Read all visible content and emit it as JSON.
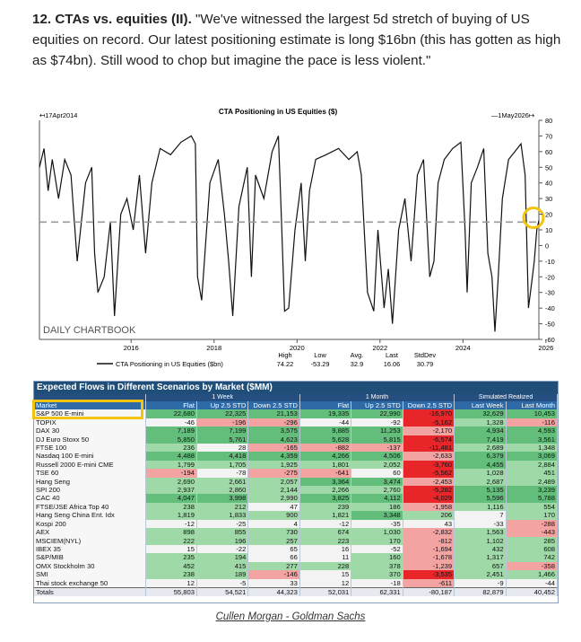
{
  "heading": {
    "number": "12. CTAs vs. equities (II).",
    "quote": " \"We've witnessed the largest 5d stretch of buying of US equities on record. Our latest positioning estimate is long $16bn (this has gotten as high as $74bn). Still wood to chop but imagine the pace is less violent.\""
  },
  "chart_data": [
    {
      "type": "line",
      "title": "CTA Positioning in US Equities ($)",
      "start_label": "17Apr2014",
      "end_label": "1May2026",
      "watermark": "DAILY CHARTBOOK",
      "x_ticks": [
        "2016",
        "2018",
        "2020",
        "2022",
        "2024",
        "2026"
      ],
      "y_ticks": [
        80,
        70,
        60,
        50,
        40,
        30,
        20,
        10,
        0,
        -10,
        -20,
        -30,
        -40,
        -50,
        -60
      ],
      "ylim": [
        -60,
        80
      ],
      "xlim": [
        2014.29,
        2026.33
      ],
      "mean_line": 15,
      "series": [
        {
          "name": "CTA Positioning in US Equities ($bn)",
          "x": [
            2014.29,
            2014.4,
            2014.5,
            2014.6,
            2014.75,
            2014.9,
            2015.05,
            2015.2,
            2015.4,
            2015.55,
            2015.62,
            2015.7,
            2015.85,
            2016.0,
            2016.1,
            2016.25,
            2016.4,
            2016.55,
            2016.7,
            2016.85,
            2017.0,
            2017.2,
            2017.45,
            2017.7,
            2017.95,
            2018.05,
            2018.1,
            2018.2,
            2018.4,
            2018.6,
            2018.75,
            2018.85,
            2018.95,
            2019.1,
            2019.3,
            2019.4,
            2019.5,
            2019.7,
            2019.9,
            2020.05,
            2020.12,
            2020.2,
            2020.3,
            2020.45,
            2020.6,
            2020.7,
            2020.8,
            2020.95,
            2021.2,
            2021.5,
            2021.75,
            2021.95,
            2022.05,
            2022.2,
            2022.35,
            2022.45,
            2022.6,
            2022.7,
            2022.8,
            2022.95,
            2023.1,
            2023.25,
            2023.4,
            2023.55,
            2023.7,
            2023.8,
            2023.9,
            2024.05,
            2024.25,
            2024.45,
            2024.55,
            2024.6,
            2024.7,
            2024.85,
            2025.0,
            2025.1,
            2025.2,
            2025.27,
            2025.35,
            2025.45,
            2025.6,
            2025.75,
            2025.9,
            2026.0,
            2026.08,
            2026.15,
            2026.22,
            2026.28,
            2026.33
          ],
          "y": [
            50,
            62,
            35,
            55,
            30,
            55,
            45,
            -10,
            40,
            50,
            -5,
            -30,
            -20,
            15,
            -45,
            20,
            30,
            10,
            45,
            -5,
            40,
            62,
            58,
            66,
            70,
            65,
            -20,
            -35,
            40,
            55,
            20,
            -10,
            -45,
            25,
            50,
            -20,
            45,
            30,
            60,
            70,
            20,
            -42,
            -40,
            10,
            40,
            -10,
            35,
            55,
            58,
            62,
            55,
            60,
            45,
            -30,
            -42,
            10,
            -40,
            -15,
            -50,
            10,
            30,
            -10,
            45,
            55,
            -20,
            -10,
            40,
            55,
            62,
            66,
            10,
            -30,
            40,
            50,
            62,
            -5,
            -20,
            -55,
            -20,
            30,
            55,
            60,
            65,
            45,
            -40,
            -25,
            -10,
            10,
            16
          ]
        }
      ],
      "stats_headers": [
        "High",
        "Low",
        "Avg.",
        "Last",
        "StdDev"
      ],
      "stats_values": [
        "74.22",
        "-53.29",
        "32.9",
        "16.06",
        "30.79"
      ]
    },
    {
      "type": "table",
      "title": "Expected Flows in Different Scenarios by Market ($MM)",
      "groups": [
        "1 Week",
        "1 Month",
        "Simulated Realized"
      ],
      "columns": [
        "Market",
        "Flat",
        "Up 2.5 STD",
        "Down 2.5 STD",
        "Flat",
        "Up 2.5 STD",
        "Down 2.5 STD",
        "Last Week",
        "Last Month"
      ],
      "rows": [
        [
          "S&P 500 E-mini",
          "22,680",
          "22,325",
          "21,153",
          "19,335",
          "22,990",
          "-16,970",
          "32,629",
          "10,453"
        ],
        [
          "TOPIX",
          "-46",
          "-196",
          "-296",
          "-44",
          "-92",
          "-5,162",
          "1,328",
          "-116"
        ],
        [
          "DAX 30",
          "7,189",
          "7,199",
          "3,575",
          "9,885",
          "11,253",
          "-2,170",
          "4,934",
          "4,593"
        ],
        [
          "DJ Euro Stoxx 50",
          "5,850",
          "5,761",
          "4,623",
          "5,628",
          "5,815",
          "-6,574",
          "7,419",
          "3,561"
        ],
        [
          "FTSE 100",
          "236",
          "28",
          "-165",
          "-882",
          "-137",
          "-11,481",
          "2,689",
          "1,348"
        ],
        [
          "Nasdaq 100 E-mini",
          "4,488",
          "4,418",
          "4,359",
          "4,266",
          "4,506",
          "-2,633",
          "6,379",
          "3,069"
        ],
        [
          "Russell 2000 E-mini CME",
          "1,799",
          "1,705",
          "1,925",
          "1,801",
          "2,052",
          "-3,760",
          "4,455",
          "2,884"
        ],
        [
          "TSE 60",
          "-194",
          "-78",
          "-275",
          "-641",
          "60",
          "-5,562",
          "1,028",
          "451"
        ],
        [
          "Hang Seng",
          "2,690",
          "2,661",
          "2,057",
          "3,364",
          "3,474",
          "-2,453",
          "2,687",
          "2,489"
        ],
        [
          "SPI 200",
          "2,937",
          "2,860",
          "2,144",
          "2,266",
          "2,760",
          "-5,282",
          "5,135",
          "3,239"
        ],
        [
          "CAC 40",
          "4,047",
          "3,998",
          "2,990",
          "3,825",
          "4,112",
          "-4,029",
          "5,596",
          "5,788"
        ],
        [
          "FTSE/JSE Africa Top 40",
          "238",
          "212",
          "47",
          "239",
          "186",
          "-1,958",
          "1,116",
          "554"
        ],
        [
          "Hang Seng China Ent. Idx",
          "1,819",
          "1,833",
          "900",
          "1,821",
          "3,348",
          "206",
          "7",
          "170"
        ],
        [
          "Kospi 200",
          "-12",
          "-25",
          "4",
          "-12",
          "-35",
          "43",
          "-33",
          "-288"
        ],
        [
          "AEX",
          "898",
          "855",
          "730",
          "674",
          "1,030",
          "-2,832",
          "1,563",
          "-443"
        ],
        [
          "MSCIEM(NYL)",
          "222",
          "196",
          "257",
          "223",
          "170",
          "-812",
          "1,102",
          "285"
        ],
        [
          "IBEX 35",
          "15",
          "-22",
          "65",
          "16",
          "-52",
          "-1,694",
          "432",
          "608"
        ],
        [
          "S&P/MIB",
          "235",
          "194",
          "66",
          "11",
          "160",
          "-1,678",
          "1,317",
          "742"
        ],
        [
          "OMX Stockholm 30",
          "452",
          "415",
          "277",
          "228",
          "378",
          "-1,239",
          "657",
          "-358"
        ],
        [
          "SMI",
          "238",
          "189",
          "-146",
          "15",
          "370",
          "-3,535",
          "2,451",
          "1,466"
        ],
        [
          "Thai stock exchange 50",
          "12",
          "-5",
          "33",
          "12",
          "-18",
          "-611",
          "-9",
          "-44"
        ]
      ],
      "totals": [
        "Totals",
        "55,803",
        "54,521",
        "44,323",
        "52,031",
        "62,331",
        "-80,187",
        "82,879",
        "40,452"
      ]
    }
  ],
  "credit": "Cullen Morgan - Goldman Sachs",
  "colors": {
    "pos": "#9fd9a8",
    "pos_strong": "#63be7b",
    "neg": "#f4a3a3",
    "neg_strong": "#e8262a",
    "header": "#2e6aa6",
    "highlight": "#f2c40f"
  }
}
